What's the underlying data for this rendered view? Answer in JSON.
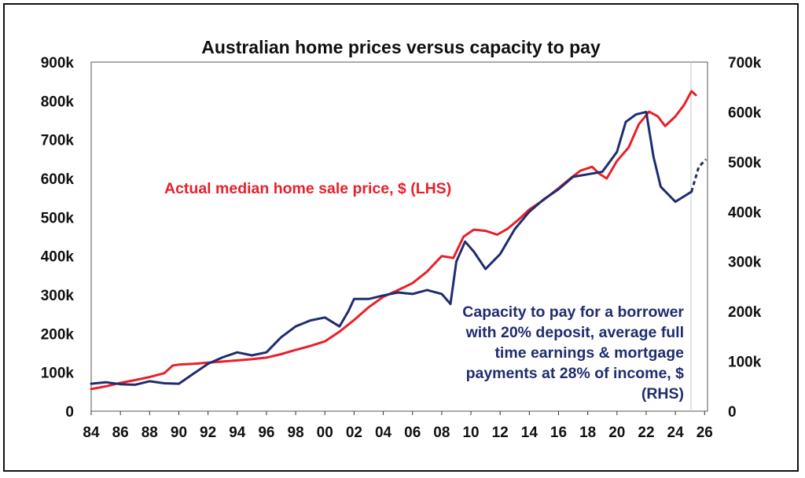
{
  "chart_data": {
    "type": "line",
    "title": "Australian home prices versus capacity to pay",
    "x_ticks": [
      "84",
      "86",
      "88",
      "90",
      "92",
      "94",
      "96",
      "98",
      "00",
      "02",
      "04",
      "06",
      "08",
      "10",
      "12",
      "14",
      "16",
      "18",
      "20",
      "22",
      "24",
      "26"
    ],
    "x_range": [
      1984,
      2026.2
    ],
    "left_axis": {
      "ticks": [
        "0",
        "100k",
        "200k",
        "300k",
        "400k",
        "500k",
        "600k",
        "700k",
        "800k",
        "900k"
      ],
      "range": [
        0,
        900000
      ]
    },
    "right_axis": {
      "ticks": [
        "0",
        "100k",
        "200k",
        "300k",
        "400k",
        "500k",
        "600k",
        "700k"
      ],
      "range": [
        0,
        700000
      ]
    },
    "grid": false,
    "series": [
      {
        "name": "Actual median home sale price, $ (LHS)",
        "axis": "left",
        "color": "#e8202a",
        "label_lines": [
          "Actual median home sale price, $ (LHS)"
        ],
        "points": [
          [
            1984,
            57000
          ],
          [
            1985,
            64000
          ],
          [
            1986,
            73000
          ],
          [
            1987,
            80000
          ],
          [
            1988,
            88000
          ],
          [
            1989,
            98000
          ],
          [
            1989.6,
            118000
          ],
          [
            1990,
            120000
          ],
          [
            1991,
            122000
          ],
          [
            1992,
            125000
          ],
          [
            1993,
            128000
          ],
          [
            1994,
            131000
          ],
          [
            1995,
            134000
          ],
          [
            1996,
            138000
          ],
          [
            1997,
            147000
          ],
          [
            1998,
            158000
          ],
          [
            1999,
            168000
          ],
          [
            2000,
            180000
          ],
          [
            2001,
            205000
          ],
          [
            2002,
            235000
          ],
          [
            2003,
            268000
          ],
          [
            2004,
            295000
          ],
          [
            2005,
            312000
          ],
          [
            2006,
            330000
          ],
          [
            2007,
            360000
          ],
          [
            2008,
            400000
          ],
          [
            2008.8,
            395000
          ],
          [
            2009.5,
            450000
          ],
          [
            2010.2,
            468000
          ],
          [
            2011,
            465000
          ],
          [
            2011.8,
            455000
          ],
          [
            2012.5,
            470000
          ],
          [
            2013.3,
            495000
          ],
          [
            2014,
            520000
          ],
          [
            2015,
            545000
          ],
          [
            2016,
            575000
          ],
          [
            2016.8,
            600000
          ],
          [
            2017.5,
            620000
          ],
          [
            2018.3,
            630000
          ],
          [
            2018.8,
            612000
          ],
          [
            2019.3,
            600000
          ],
          [
            2020,
            645000
          ],
          [
            2020.8,
            680000
          ],
          [
            2021.5,
            740000
          ],
          [
            2022.2,
            772000
          ],
          [
            2022.8,
            760000
          ],
          [
            2023.3,
            735000
          ],
          [
            2024,
            760000
          ],
          [
            2024.6,
            790000
          ],
          [
            2025.1,
            825000
          ],
          [
            2025.4,
            815000
          ]
        ]
      },
      {
        "name": "Capacity to pay for a borrower with 20% deposit, average full time earnings & mortgage payments at 28% of income, $ (RHS)",
        "axis": "right",
        "color": "#1f2d6e",
        "label_lines": [
          "Capacity to pay for a borrower",
          "with 20% deposit, average full",
          "time earnings & mortgage",
          "payments at 28% of income, $",
          "(RHS)"
        ],
        "points": [
          [
            1984,
            55000
          ],
          [
            1985,
            58000
          ],
          [
            1986,
            54000
          ],
          [
            1987,
            53000
          ],
          [
            1988,
            60000
          ],
          [
            1989,
            56000
          ],
          [
            1990,
            55000
          ],
          [
            1991,
            75000
          ],
          [
            1992,
            95000
          ],
          [
            1993,
            108000
          ],
          [
            1994,
            118000
          ],
          [
            1995,
            112000
          ],
          [
            1996,
            118000
          ],
          [
            1997,
            148000
          ],
          [
            1998,
            170000
          ],
          [
            1999,
            182000
          ],
          [
            2000,
            188000
          ],
          [
            2001,
            170000
          ],
          [
            2001.6,
            200000
          ],
          [
            2002,
            225000
          ],
          [
            2003,
            225000
          ],
          [
            2004,
            232000
          ],
          [
            2005,
            238000
          ],
          [
            2006,
            235000
          ],
          [
            2007,
            243000
          ],
          [
            2008,
            235000
          ],
          [
            2008.6,
            215000
          ],
          [
            2009,
            300000
          ],
          [
            2009.6,
            340000
          ],
          [
            2010.2,
            320000
          ],
          [
            2011,
            285000
          ],
          [
            2012,
            315000
          ],
          [
            2013,
            365000
          ],
          [
            2014,
            400000
          ],
          [
            2015,
            425000
          ],
          [
            2016,
            445000
          ],
          [
            2017,
            470000
          ],
          [
            2018,
            475000
          ],
          [
            2019,
            480000
          ],
          [
            2020,
            520000
          ],
          [
            2020.6,
            580000
          ],
          [
            2021.3,
            595000
          ],
          [
            2022,
            600000
          ],
          [
            2022.5,
            510000
          ],
          [
            2023,
            450000
          ],
          [
            2024,
            420000
          ],
          [
            2025.1,
            440000
          ]
        ],
        "projection": [
          [
            2025.1,
            440000
          ],
          [
            2025.6,
            490000
          ],
          [
            2026.1,
            505000
          ]
        ]
      }
    ]
  }
}
